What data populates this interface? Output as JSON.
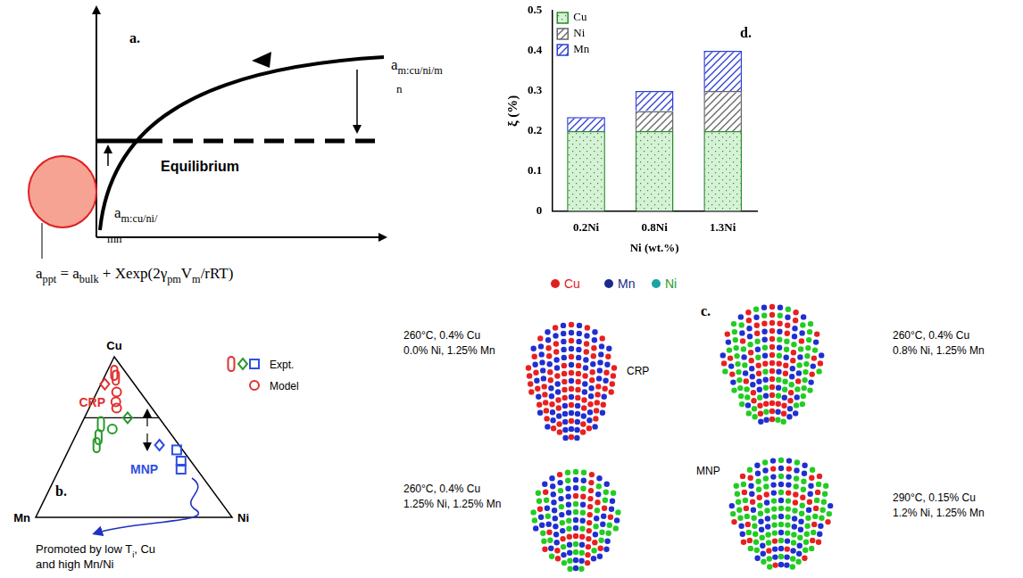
{
  "chart_data": {
    "type": "bar",
    "stacked": true,
    "grid": false,
    "legend": "upper left",
    "categories": [
      "0.2Ni",
      "0.8Ni",
      "1.3Ni"
    ],
    "series": [
      {
        "name": "Cu",
        "color": "#2e8b2e",
        "values": [
          0.2,
          0.2,
          0.2
        ]
      },
      {
        "name": "Ni",
        "color": "#666666",
        "values": [
          0,
          0.05,
          0.1
        ]
      },
      {
        "name": "Mn",
        "color": "#2f3fd6",
        "values": [
          0.035,
          0.05,
          0.1
        ]
      }
    ],
    "x_label": "Ni (wt.%)",
    "y_label": "ξ (%)",
    "ylim": [
      0,
      0.5
    ],
    "yticks": [
      0,
      0.1,
      0.2,
      0.3,
      0.4,
      0.5
    ],
    "annotations": [
      "d."
    ]
  },
  "panel_a": {
    "letter": "a.",
    "curve_label": {
      "parts": [
        {
          "t": "a"
        },
        {
          "sub": "m:cu/ni/m"
        }
      ],
      "wrap": "n"
    },
    "equilibrium": "Equilibrium",
    "surface_label": {
      "parts": [
        {
          "t": "a"
        },
        {
          "sub": "m:cu/ni/"
        }
      ],
      "wrap": "mn"
    },
    "equation": [
      {
        "t": "a"
      },
      {
        "sub": "ppt"
      },
      {
        "t": " = a"
      },
      {
        "sub": "bulk"
      },
      {
        "t": " + Xexp(2γ"
      },
      {
        "sub": "pm"
      },
      {
        "t": "V"
      },
      {
        "sub": "m"
      },
      {
        "t": "/rRT)"
      }
    ]
  },
  "panel_b": {
    "letter": "b.",
    "vertices": {
      "top": "Cu",
      "left": "Mn",
      "right": "Ni"
    },
    "divider_cu": 0.62,
    "legend": [
      {
        "label": "Expt.",
        "markers": [
          {
            "marker": "ellipse",
            "color": "#e03030"
          },
          {
            "marker": "diamond",
            "color": "#2a9a2a"
          },
          {
            "marker": "square",
            "color": "#3050e0"
          }
        ]
      },
      {
        "label": "Model",
        "markers": [
          {
            "marker": "circle",
            "color": "#e03030"
          }
        ]
      }
    ],
    "regions": [
      {
        "label": "CRP",
        "color": "#e03030"
      },
      {
        "label": "MNP",
        "color": "#3050e0"
      }
    ],
    "points": [
      {
        "marker": "ellipse",
        "color": "#e03030",
        "Cu": 0.9,
        "Ni": 0.04
      },
      {
        "marker": "ellipse",
        "color": "#e03030",
        "Cu": 0.87,
        "Ni": 0.06
      },
      {
        "marker": "diamond",
        "color": "#e03030",
        "Cu": 0.83,
        "Ni": 0.02
      },
      {
        "marker": "circle",
        "color": "#e03030",
        "Cu": 0.78,
        "Ni": 0.1
      },
      {
        "marker": "circle",
        "color": "#e03030",
        "Cu": 0.72,
        "Ni": 0.12
      },
      {
        "marker": "circle",
        "color": "#e03030",
        "Cu": 0.68,
        "Ni": 0.14
      },
      {
        "marker": "ellipse",
        "color": "#2a9a2a",
        "Cu": 0.58,
        "Ni": 0.1
      },
      {
        "marker": "ellipse",
        "color": "#2a9a2a",
        "Cu": 0.5,
        "Ni": 0.12
      },
      {
        "marker": "ellipse",
        "color": "#2a9a2a",
        "Cu": 0.45,
        "Ni": 0.13
      },
      {
        "marker": "circle",
        "color": "#2a9a2a",
        "Cu": 0.55,
        "Ni": 0.17
      },
      {
        "marker": "diamond",
        "color": "#2a9a2a",
        "Cu": 0.62,
        "Ni": 0.22
      },
      {
        "marker": "diamond",
        "color": "#3050e0",
        "Cu": 0.45,
        "Ni": 0.45
      },
      {
        "marker": "square",
        "color": "#3050e0",
        "Cu": 0.42,
        "Ni": 0.55
      },
      {
        "marker": "square",
        "color": "#3050e0",
        "Cu": 0.35,
        "Ni": 0.6
      },
      {
        "marker": "square",
        "color": "#3050e0",
        "Cu": 0.3,
        "Ni": 0.62
      }
    ],
    "note": [
      [
        {
          "t": "Promoted by low T"
        },
        {
          "sub": "i"
        },
        {
          "t": ", Cu"
        }
      ],
      [
        {
          "t": "and high Mn/Ni"
        }
      ]
    ]
  },
  "panel_c": {
    "letter": "c.",
    "legend": [
      {
        "label": "Cu",
        "dot_color": "#e02020",
        "text_color": "#e02020"
      },
      {
        "label": "Mn",
        "dot_color": "#1a2a8a",
        "text_color": "#1a2a8a"
      },
      {
        "label": "Ni",
        "dot_color": "#1aa3a3",
        "text_color": "#2a9a2a"
      }
    ],
    "atom_colors": {
      "Cu": "#e82020",
      "Mn": "#1f2fd0",
      "Ni": "#22cc22"
    },
    "clusters": [
      {
        "caption": [
          "260°C, 0.4% Cu",
          "0.0% Ni, 1.25% Mn"
        ],
        "label": "CRP",
        "atoms": [
          "Cu",
          "Mn"
        ]
      },
      {
        "caption": [
          "260°C, 0.4% Cu",
          "0.8% Ni, 1.25% Mn"
        ],
        "label": null,
        "atoms": [
          "Cu",
          "Mn",
          "Ni"
        ]
      },
      {
        "caption": [
          "260°C, 0.4% Cu",
          "1.25% Ni, 1.25% Mn"
        ],
        "label": null,
        "atoms": [
          "Ni",
          "Mn",
          "Ni",
          "Mn",
          "Cu"
        ]
      },
      {
        "caption": [
          "290°C, 0.15% Cu",
          "1.2% Ni, 1.25% Mn"
        ],
        "label": "MNP",
        "atoms": [
          "Ni",
          "Mn",
          "Ni",
          "Mn",
          "Ni",
          "Cu"
        ]
      }
    ]
  }
}
